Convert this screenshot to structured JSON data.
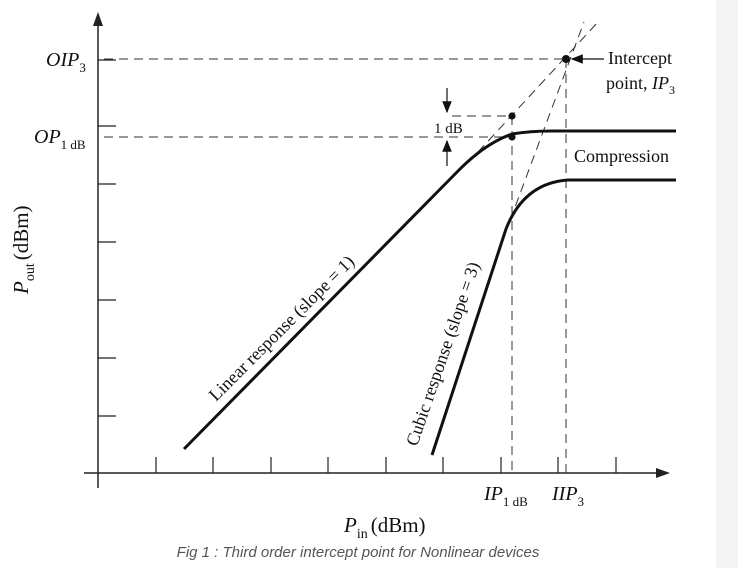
{
  "figure": {
    "y_axis": {
      "var": "P",
      "sub": "out",
      "unit": "(dBm)"
    },
    "x_axis": {
      "var": "P",
      "sub": "in",
      "unit": "(dBm)"
    },
    "y_labels": {
      "oip3": {
        "main": "OIP",
        "sub": "3"
      },
      "op1db": {
        "main": "OP",
        "sub": "1 dB"
      }
    },
    "x_labels": {
      "ip1db": {
        "main": "IP",
        "sub": "1 dB"
      },
      "iip3": {
        "main": "IIP",
        "sub": "3"
      }
    },
    "annotations": {
      "intercept_line1": "Intercept",
      "intercept_line2_prefix": "point, ",
      "intercept_ip": "IP",
      "intercept_sub": "3",
      "one_db": "1 dB",
      "compression": "Compression",
      "linear": "Linear response (slope = 1)",
      "cubic": "Cubic response (slope = 3)"
    },
    "colors": {
      "line": "#111111",
      "axis": "#222222",
      "caption": "#555555",
      "sidebar": "#f5f5f5"
    }
  },
  "caption": "Fig 1 : Third order intercept point for Nonlinear devices"
}
